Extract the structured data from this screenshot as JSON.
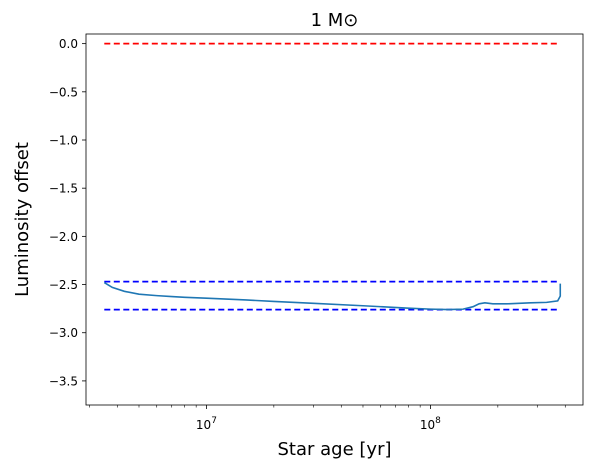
{
  "chart_data": {
    "type": "line",
    "title": "1 M⊙",
    "xlabel": "Star age [yr]",
    "ylabel": "Luminosity offset",
    "xscale": "log",
    "xlim": [
      2900000,
      480000000
    ],
    "ylim": [
      -3.75,
      0.1
    ],
    "grid": false,
    "x_ticks": [
      {
        "value": 10000000,
        "base": "10",
        "exp": "7"
      },
      {
        "value": 100000000,
        "base": "10",
        "exp": "8"
      }
    ],
    "y_ticks": [
      {
        "value": 0.0,
        "label": "0.0"
      },
      {
        "value": -0.5,
        "label": "−0.5"
      },
      {
        "value": -1.0,
        "label": "−1.0"
      },
      {
        "value": -1.5,
        "label": "−1.5"
      },
      {
        "value": -2.0,
        "label": "−2.0"
      },
      {
        "value": -2.5,
        "label": "−2.5"
      },
      {
        "value": -3.0,
        "label": "−3.0"
      },
      {
        "value": -3.5,
        "label": "−3.5"
      }
    ],
    "reference_lines": [
      {
        "y": 0.0,
        "x_start": 3500000,
        "x_end": 380000000,
        "color": "#ff0000",
        "style": "dashed"
      },
      {
        "y": -2.47,
        "x_start": 3500000,
        "x_end": 380000000,
        "color": "#0000ff",
        "style": "dashed"
      },
      {
        "y": -2.76,
        "x_start": 3500000,
        "x_end": 380000000,
        "color": "#0000ff",
        "style": "dashed"
      }
    ],
    "series": [
      {
        "color": "#1f77b4",
        "x": [
          3500000,
          3800000,
          4300000,
          5000000,
          6000000,
          7000000,
          8000000,
          10000000,
          15000000,
          20000000,
          30000000,
          50000000,
          80000000,
          100000000,
          120000000,
          140000000,
          155000000,
          165000000,
          175000000,
          190000000,
          220000000,
          280000000,
          330000000,
          370000000,
          380000000,
          380000000,
          380000000
        ],
        "y": [
          -2.48,
          -2.53,
          -2.57,
          -2.6,
          -2.615,
          -2.625,
          -2.632,
          -2.642,
          -2.66,
          -2.675,
          -2.695,
          -2.72,
          -2.745,
          -2.755,
          -2.76,
          -2.755,
          -2.73,
          -2.7,
          -2.69,
          -2.7,
          -2.7,
          -2.69,
          -2.685,
          -2.67,
          -2.62,
          -2.55,
          -2.49
        ]
      }
    ]
  }
}
